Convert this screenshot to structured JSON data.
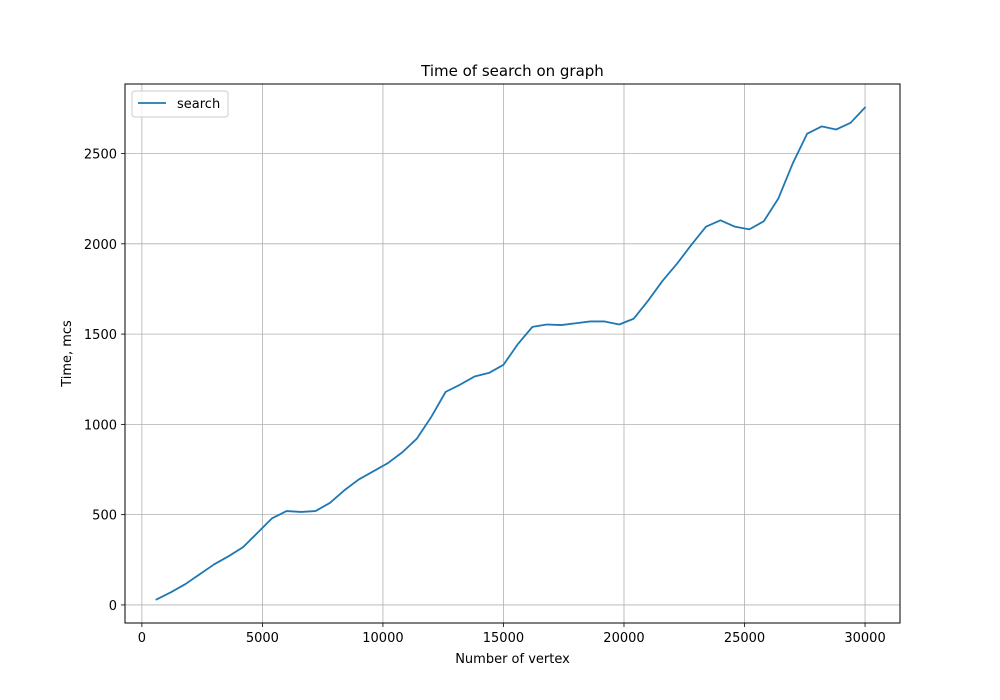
{
  "chart_data": {
    "type": "line",
    "title": "Time of search on graph",
    "xlabel": "Number of vertex",
    "ylabel": "Time, mcs",
    "xlim": [
      -700,
      31450
    ],
    "ylim": [
      -100,
      2885
    ],
    "xticks": [
      0,
      5000,
      10000,
      15000,
      20000,
      25000,
      30000
    ],
    "yticks": [
      0,
      500,
      1000,
      1500,
      2000,
      2500
    ],
    "grid": true,
    "legend_position": "top-left",
    "series": [
      {
        "name": "search",
        "color": "#1f77b4",
        "x": [
          600,
          1200,
          1800,
          2400,
          3000,
          3600,
          4200,
          4800,
          5400,
          6000,
          6600,
          7200,
          7800,
          8400,
          9000,
          9600,
          10200,
          10800,
          11400,
          12000,
          12600,
          13200,
          13800,
          14400,
          15000,
          15600,
          16200,
          16800,
          17400,
          18000,
          18600,
          19200,
          19800,
          20400,
          21000,
          21600,
          22200,
          22800,
          23400,
          24000,
          24600,
          25200,
          25800,
          26400,
          27000,
          27600,
          28200,
          28800,
          29400,
          30000
        ],
        "y": [
          30,
          70,
          115,
          170,
          225,
          270,
          320,
          400,
          480,
          520,
          515,
          520,
          565,
          635,
          695,
          740,
          785,
          845,
          920,
          1040,
          1180,
          1220,
          1265,
          1285,
          1330,
          1445,
          1540,
          1553,
          1550,
          1560,
          1570,
          1570,
          1553,
          1585,
          1685,
          1795,
          1890,
          1995,
          2095,
          2130,
          2095,
          2080,
          2125,
          2250,
          2445,
          2610,
          2650,
          2633,
          2670,
          2755
        ]
      }
    ]
  }
}
